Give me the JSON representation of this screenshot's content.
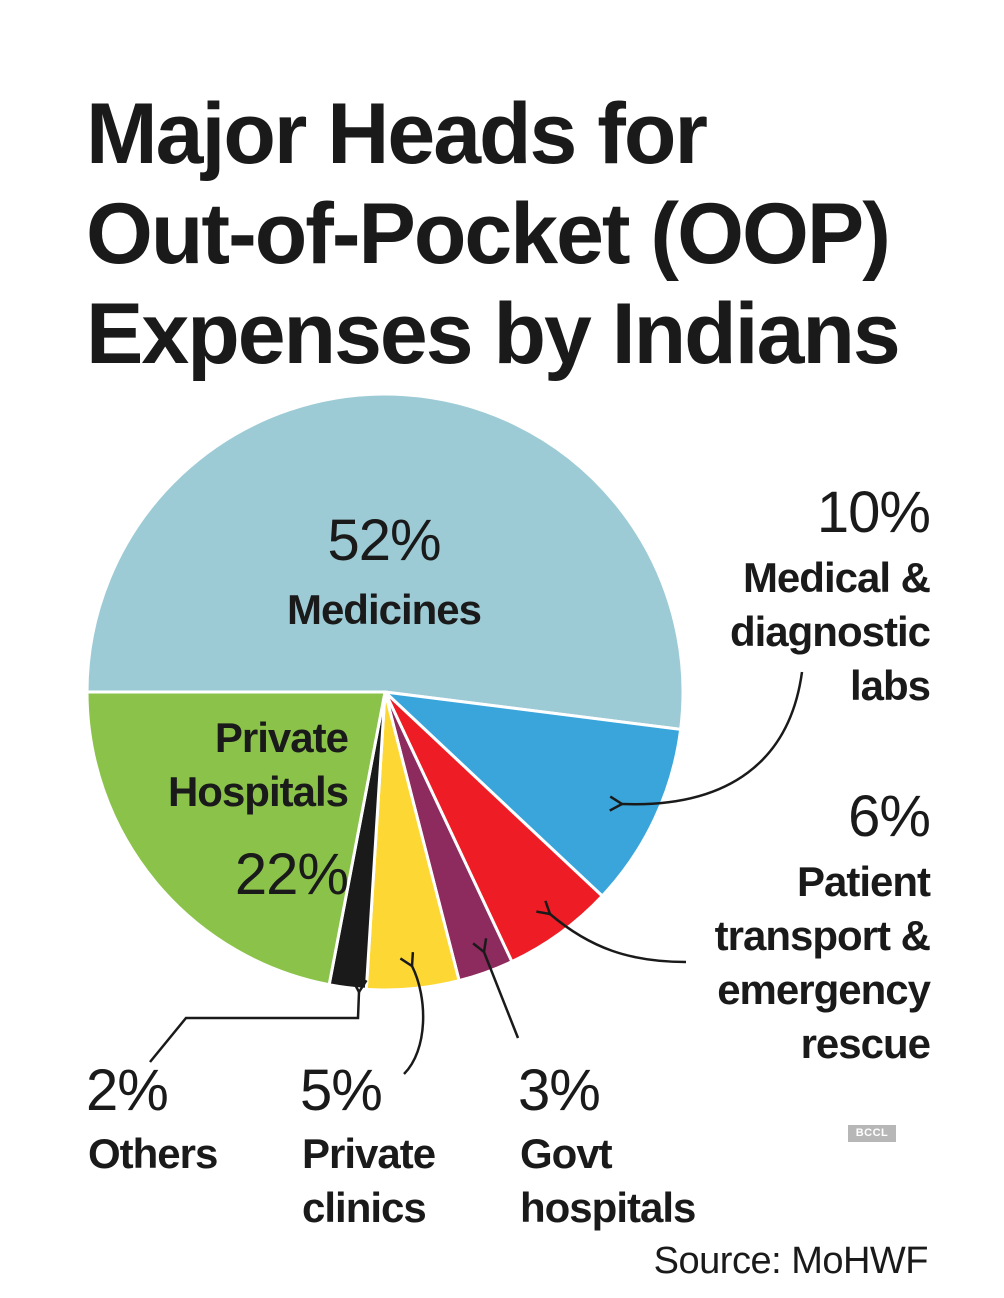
{
  "title_lines": [
    "Major Heads for",
    "Out-of-Pocket (OOP)",
    "Expenses by Indians"
  ],
  "source": "Source: MoHWF",
  "watermark": "BCCL",
  "chart_data": {
    "type": "pie",
    "slices": [
      {
        "id": "medicines",
        "value": 52,
        "pct_label": "52%",
        "label_lines": [
          "Medicines"
        ],
        "color": "#9ccbd6"
      },
      {
        "id": "labs",
        "value": 10,
        "pct_label": "10%",
        "label_lines": [
          "Medical &",
          "diagnostic",
          "labs"
        ],
        "color": "#39a5da"
      },
      {
        "id": "transport",
        "value": 6,
        "pct_label": "6%",
        "label_lines": [
          "Patient",
          "transport &",
          "emergency",
          "rescue"
        ],
        "color": "#ee1c25"
      },
      {
        "id": "govt",
        "value": 3,
        "pct_label": "3%",
        "label_lines": [
          "Govt",
          "hospitals"
        ],
        "color": "#8d2a5e"
      },
      {
        "id": "clinics",
        "value": 5,
        "pct_label": "5%",
        "label_lines": [
          "Private",
          "clinics"
        ],
        "color": "#fdd835"
      },
      {
        "id": "others",
        "value": 2,
        "pct_label": "2%",
        "label_lines": [
          "Others"
        ],
        "color": "#1a1a1a"
      },
      {
        "id": "private-hospitals",
        "value": 22,
        "pct_label": "22%",
        "label_lines": [
          "Private",
          "Hospitals"
        ],
        "color": "#8bc34a"
      }
    ]
  }
}
